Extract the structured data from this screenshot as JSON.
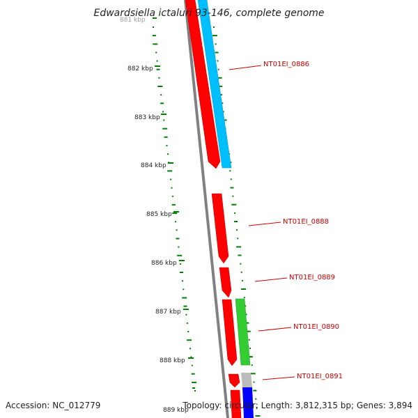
{
  "title": "Edwardsiella ictaluri 93-146, complete genome",
  "footer": {
    "accession": "Accession: NC_012779",
    "topology": "Topology: circular; Length: 3,812,315 bp; Genes: 3,894"
  },
  "kbp_labels": [
    "881 kbp",
    "882 kbp",
    "883 kbp",
    "884 kbp",
    "885 kbp",
    "886 kbp",
    "887 kbp",
    "888 kbp",
    "889 kbp"
  ],
  "gene_labels": [
    "NT01EI_0886",
    "NT01EI_0888",
    "NT01EI_0889",
    "NT01EI_0890",
    "NT01EI_0891"
  ],
  "colors": {
    "forward_cds": "#ff0000",
    "blast_hit": "#00bfff",
    "green_track": "#33cc33",
    "grey_track": "#bbbbbb",
    "blue_track": "#0000ff",
    "backbone": "#808080",
    "gc_ticks": "#008000",
    "label_text": "#cc0000"
  }
}
